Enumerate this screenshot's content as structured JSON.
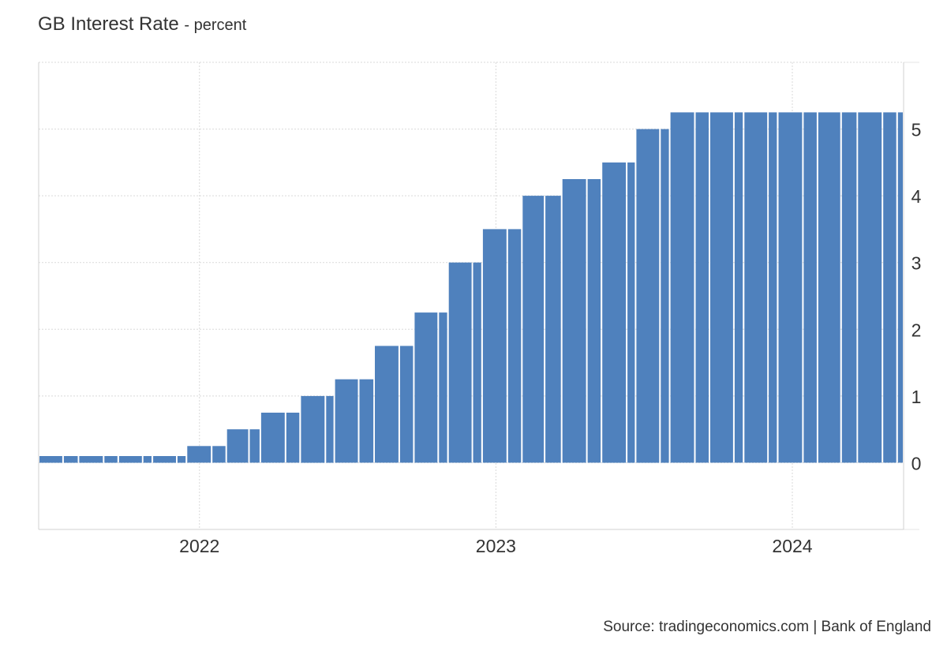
{
  "title": "GB Interest Rate",
  "subtitle": "- percent",
  "source": "Source: tradingeconomics.com | Bank of England",
  "colors": {
    "bar": "#4f81bd",
    "grid": "#d9d9d9",
    "axis": "#d0d0d0",
    "text": "#333333"
  },
  "chart_data": {
    "type": "bar",
    "xlabel": "",
    "ylabel": "",
    "xlim": [
      "2021-06-17",
      "2024-05-17"
    ],
    "ylim": [
      -1,
      6
    ],
    "grid": true,
    "legend": "none",
    "x_tick_labels": [
      "2022",
      "2023",
      "2024"
    ],
    "y_tick_labels": [
      "0",
      "1",
      "2",
      "3",
      "4",
      "5"
    ],
    "y_ticks": [
      0,
      1,
      2,
      3,
      4,
      5
    ],
    "dates": [
      "2021-06-17",
      "2021-08-05",
      "2021-09-23",
      "2021-11-04",
      "2021-12-16",
      "2022-02-03",
      "2022-03-17",
      "2022-05-05",
      "2022-06-16",
      "2022-08-04",
      "2022-09-22",
      "2022-11-03",
      "2022-12-15",
      "2023-02-02",
      "2023-03-23",
      "2023-05-11",
      "2023-06-22",
      "2023-08-03",
      "2023-09-21",
      "2023-11-02",
      "2023-12-14",
      "2024-02-01",
      "2024-03-21",
      "2024-05-09"
    ],
    "values": [
      0.1,
      0.1,
      0.1,
      0.1,
      0.25,
      0.5,
      0.75,
      1.0,
      1.25,
      1.75,
      2.25,
      3.0,
      3.5,
      4.0,
      4.25,
      4.5,
      5.0,
      5.25,
      5.25,
      5.25,
      5.25,
      5.25,
      5.25,
      5.25
    ]
  }
}
